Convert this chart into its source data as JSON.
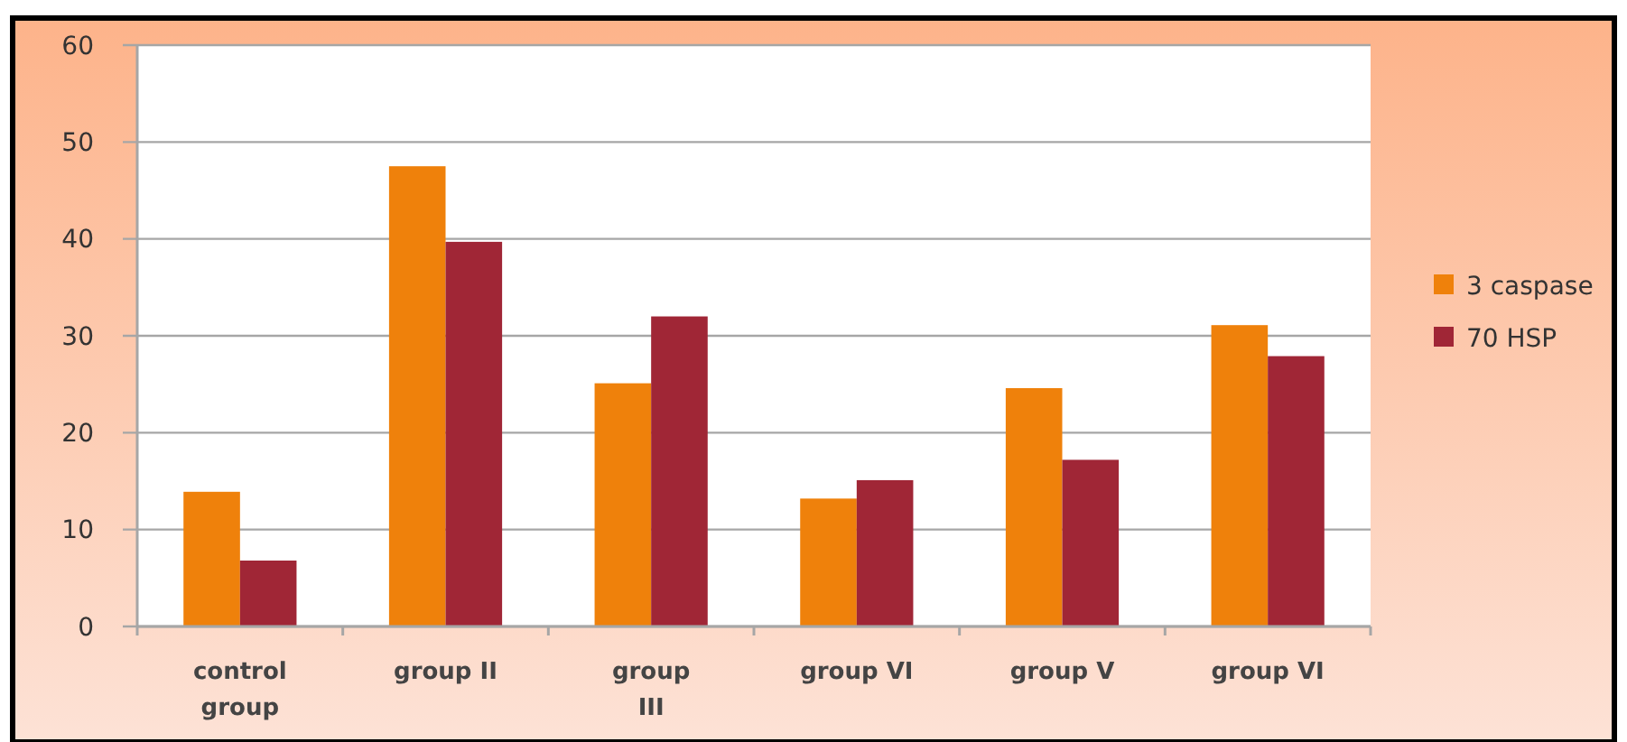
{
  "chart_data": {
    "type": "bar",
    "categories": [
      "control group",
      "group II",
      "group III",
      "group VI",
      "group V",
      "group VI"
    ],
    "series": [
      {
        "name": "3 caspase",
        "color": "#ef810b",
        "values": [
          13.9,
          47.5,
          25.1,
          13.2,
          24.6,
          31.1
        ]
      },
      {
        "name": "70 HSP",
        "color": "#a02636",
        "values": [
          6.8,
          39.7,
          32.0,
          15.1,
          17.2,
          27.9
        ]
      }
    ],
    "ylim": [
      0,
      60
    ],
    "yticks": [
      0,
      10,
      20,
      30,
      40,
      50,
      60
    ],
    "grid": "y",
    "legend": "right"
  }
}
